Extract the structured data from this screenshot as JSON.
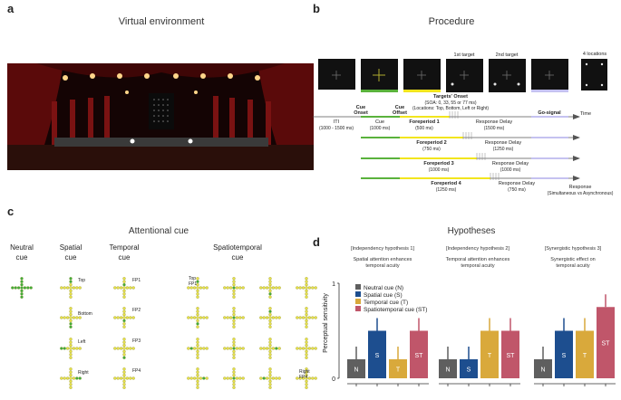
{
  "panels": {
    "a": {
      "letter": "a",
      "title": "Virtual environment"
    },
    "b": {
      "letter": "b",
      "title": "Procedure",
      "time_label": "Time",
      "four_locations": "4 locations",
      "target1": "1st target",
      "target2": "2nd target",
      "targets_onset": [
        "Targets' Onset",
        "(SOA: 0, 33, 55 or 77 ms)",
        "(Locations: Top, Bottom, Left or Right)"
      ],
      "cue_onset": [
        "Cue",
        "Onset"
      ],
      "cue_offset": [
        "Cue",
        "Offset"
      ],
      "go_signal": "Go-signal",
      "iti": [
        "ITI",
        "(1000 - 1500 ms)"
      ],
      "cue": [
        "Cue",
        "(1000 ms)"
      ],
      "foreperiods": [
        {
          "name": "Foreperiod 1",
          "dur": "(500 ms)",
          "delay": "Response Delay",
          "delay_dur": "(1500 ms)"
        },
        {
          "name": "Foreperiod 2",
          "dur": "(750 ms)",
          "delay": "Response Delay",
          "delay_dur": "(1250 ms)"
        },
        {
          "name": "Foreperiod 3",
          "dur": "(1000 ms)",
          "delay": "Response Delay",
          "delay_dur": "(1000 ms)"
        },
        {
          "name": "Foreperiod 4",
          "dur": "(1250 ms)",
          "delay": "Response Delay",
          "delay_dur": "(750 ms)"
        }
      ],
      "response": [
        "Response",
        "(Simultaneous vs Asynchronous)"
      ]
    },
    "c": {
      "letter": "c",
      "title": "Attentional cue",
      "columns": [
        [
          "Neutral",
          "cue"
        ],
        [
          "Spatial",
          "cue"
        ],
        [
          "Temporal",
          "cue"
        ],
        [
          "Spatiotemporal",
          "cue"
        ]
      ],
      "spatial_labels": [
        "Top",
        "Bottom",
        "Left",
        "Right"
      ],
      "temporal_labels": [
        "FP1",
        "FP2",
        "FP3",
        "FP4"
      ],
      "st_labels": [
        "Top",
        "FP1",
        "Right",
        "FP4"
      ]
    },
    "d": {
      "letter": "d",
      "title": "Hypotheses"
    }
  },
  "chart_data": {
    "type": "bar",
    "ylabel": "Perceptual sensitivity",
    "ylim": [
      0,
      1
    ],
    "yticks": [
      "0",
      "1"
    ],
    "legend": [
      "Neutral cue (N)",
      "Spatial cue (S)",
      "Temporal cue (T)",
      "Spatiotemporal cue (ST)"
    ],
    "colors": {
      "N": "#5f5f5f",
      "S": "#1d4e8f",
      "T": "#d9a93b",
      "ST": "#c0566a"
    },
    "subplots": [
      {
        "title": "[Independency hypothesis 1]",
        "subtitle": [
          "Spatial attention enhances",
          "temporal acuity"
        ],
        "categories": [
          "N",
          "S",
          "T",
          "ST"
        ],
        "values": [
          0.2,
          0.5,
          0.2,
          0.5
        ]
      },
      {
        "title": "[Independency hypothesis 2]",
        "subtitle": [
          "Temporal attention enhances",
          "temporal acuity"
        ],
        "categories": [
          "N",
          "S",
          "T",
          "ST"
        ],
        "values": [
          0.2,
          0.2,
          0.5,
          0.5
        ]
      },
      {
        "title": "[Synergistic hypothesis 3]",
        "subtitle": [
          "Synergistic effect on",
          "temporal acuity"
        ],
        "categories": [
          "N",
          "S",
          "T",
          "ST"
        ],
        "values": [
          0.2,
          0.5,
          0.5,
          0.75
        ]
      }
    ]
  }
}
